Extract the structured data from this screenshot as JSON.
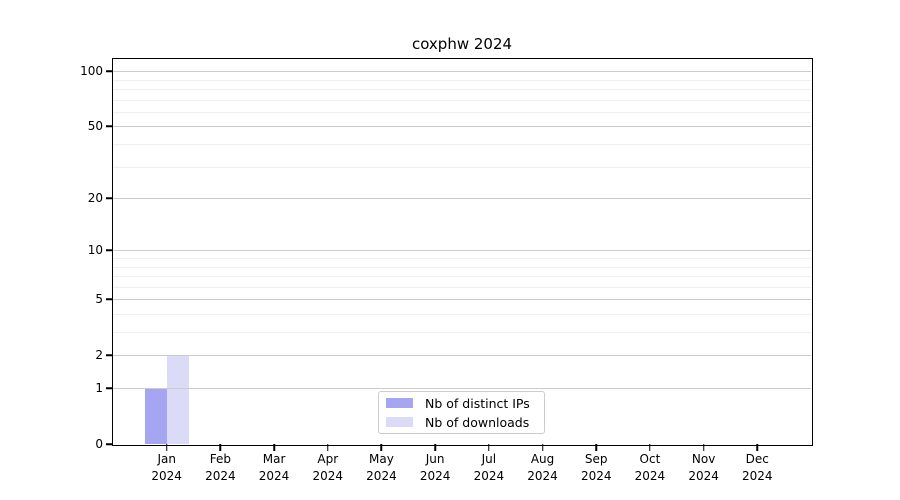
{
  "figure": {
    "background": "#ffffff"
  },
  "chart_data": {
    "type": "bar",
    "title": "coxphw 2024",
    "categories": [
      "Jan",
      "Feb",
      "Mar",
      "Apr",
      "May",
      "Jun",
      "Jul",
      "Aug",
      "Sep",
      "Oct",
      "Nov",
      "Dec"
    ],
    "category_year": "2024",
    "series": [
      {
        "name": "Nb of distinct IPs",
        "color": "#a5a5f2",
        "values": [
          1,
          0,
          0,
          0,
          0,
          0,
          0,
          0,
          0,
          0,
          0,
          0
        ]
      },
      {
        "name": "Nb of downloads",
        "color": "#dbdbf7",
        "values": [
          2,
          0,
          0,
          0,
          0,
          0,
          0,
          0,
          0,
          0,
          0,
          0
        ]
      }
    ],
    "xlabel": "",
    "ylabel": "",
    "y_ticks": [
      0,
      1,
      2,
      5,
      10,
      20,
      50,
      100
    ],
    "y_minor_ticks": [
      3,
      4,
      6,
      7,
      8,
      9,
      30,
      40,
      60,
      70,
      80,
      90
    ],
    "scale": "log1p",
    "ylim": [
      0,
      116.5
    ],
    "grid": "horizontal",
    "grid_over_bars": true,
    "grid_major_color": "#cccccc",
    "grid_minor_color": "#efefef",
    "legend_position": "inside-bottom-center"
  }
}
